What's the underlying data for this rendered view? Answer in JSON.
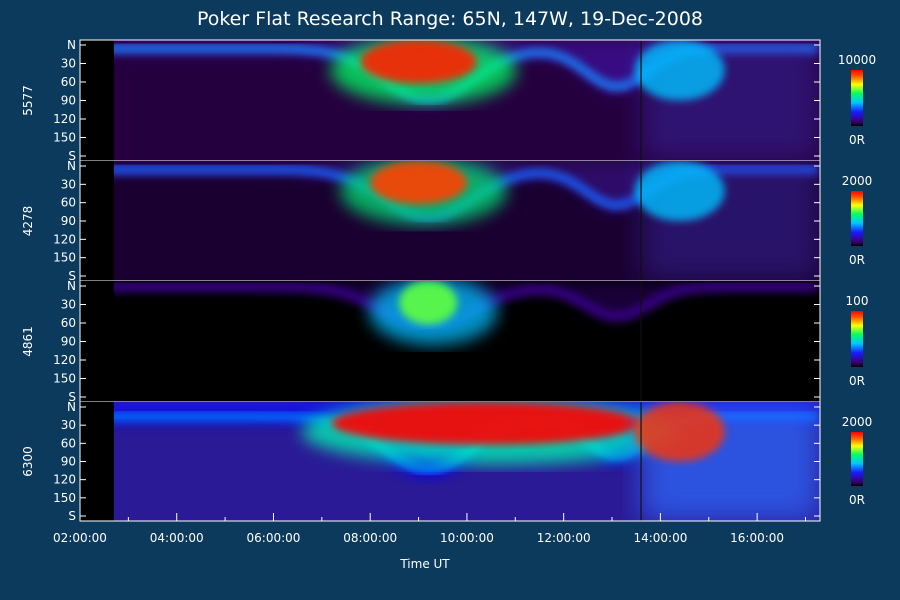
{
  "chart_data": {
    "type": "heatmap",
    "title": "Poker Flat Research Range: 65N, 147W, 19-Dec-2008",
    "xlabel": "Time UT",
    "x_ticks": [
      "02:00:00",
      "04:00:00",
      "06:00:00",
      "08:00:00",
      "10:00:00",
      "12:00:00",
      "14:00:00",
      "16:00:00"
    ],
    "x_range_hours": [
      2.0,
      17.3
    ],
    "panels": [
      {
        "ylabel": "5577",
        "colorbar": {
          "max_label": "10000",
          "min_label": "0R",
          "max": 10000,
          "min": 0
        }
      },
      {
        "ylabel": "4278",
        "colorbar": {
          "max_label": "2000",
          "min_label": "0R",
          "max": 2000,
          "min": 0
        }
      },
      {
        "ylabel": "4861",
        "colorbar": {
          "max_label": "100",
          "min_label": "0R",
          "max": 100,
          "min": 0
        }
      },
      {
        "ylabel": "6300",
        "colorbar": {
          "max_label": "2000",
          "min_label": "0R",
          "max": 2000,
          "min": 0
        }
      }
    ],
    "y_ticks": [
      "N",
      "30",
      "60",
      "90",
      "120",
      "150",
      "S"
    ],
    "y_range_deg": [
      0,
      180
    ],
    "colormap": [
      "#000000",
      "#3a0070",
      "#1a1aff",
      "#00c8ff",
      "#00ff60",
      "#ffff00",
      "#ff6000",
      "#ff0000"
    ],
    "features": {
      "data_gap_end_hour": 2.7,
      "vertical_line_hour": 13.6
    }
  }
}
